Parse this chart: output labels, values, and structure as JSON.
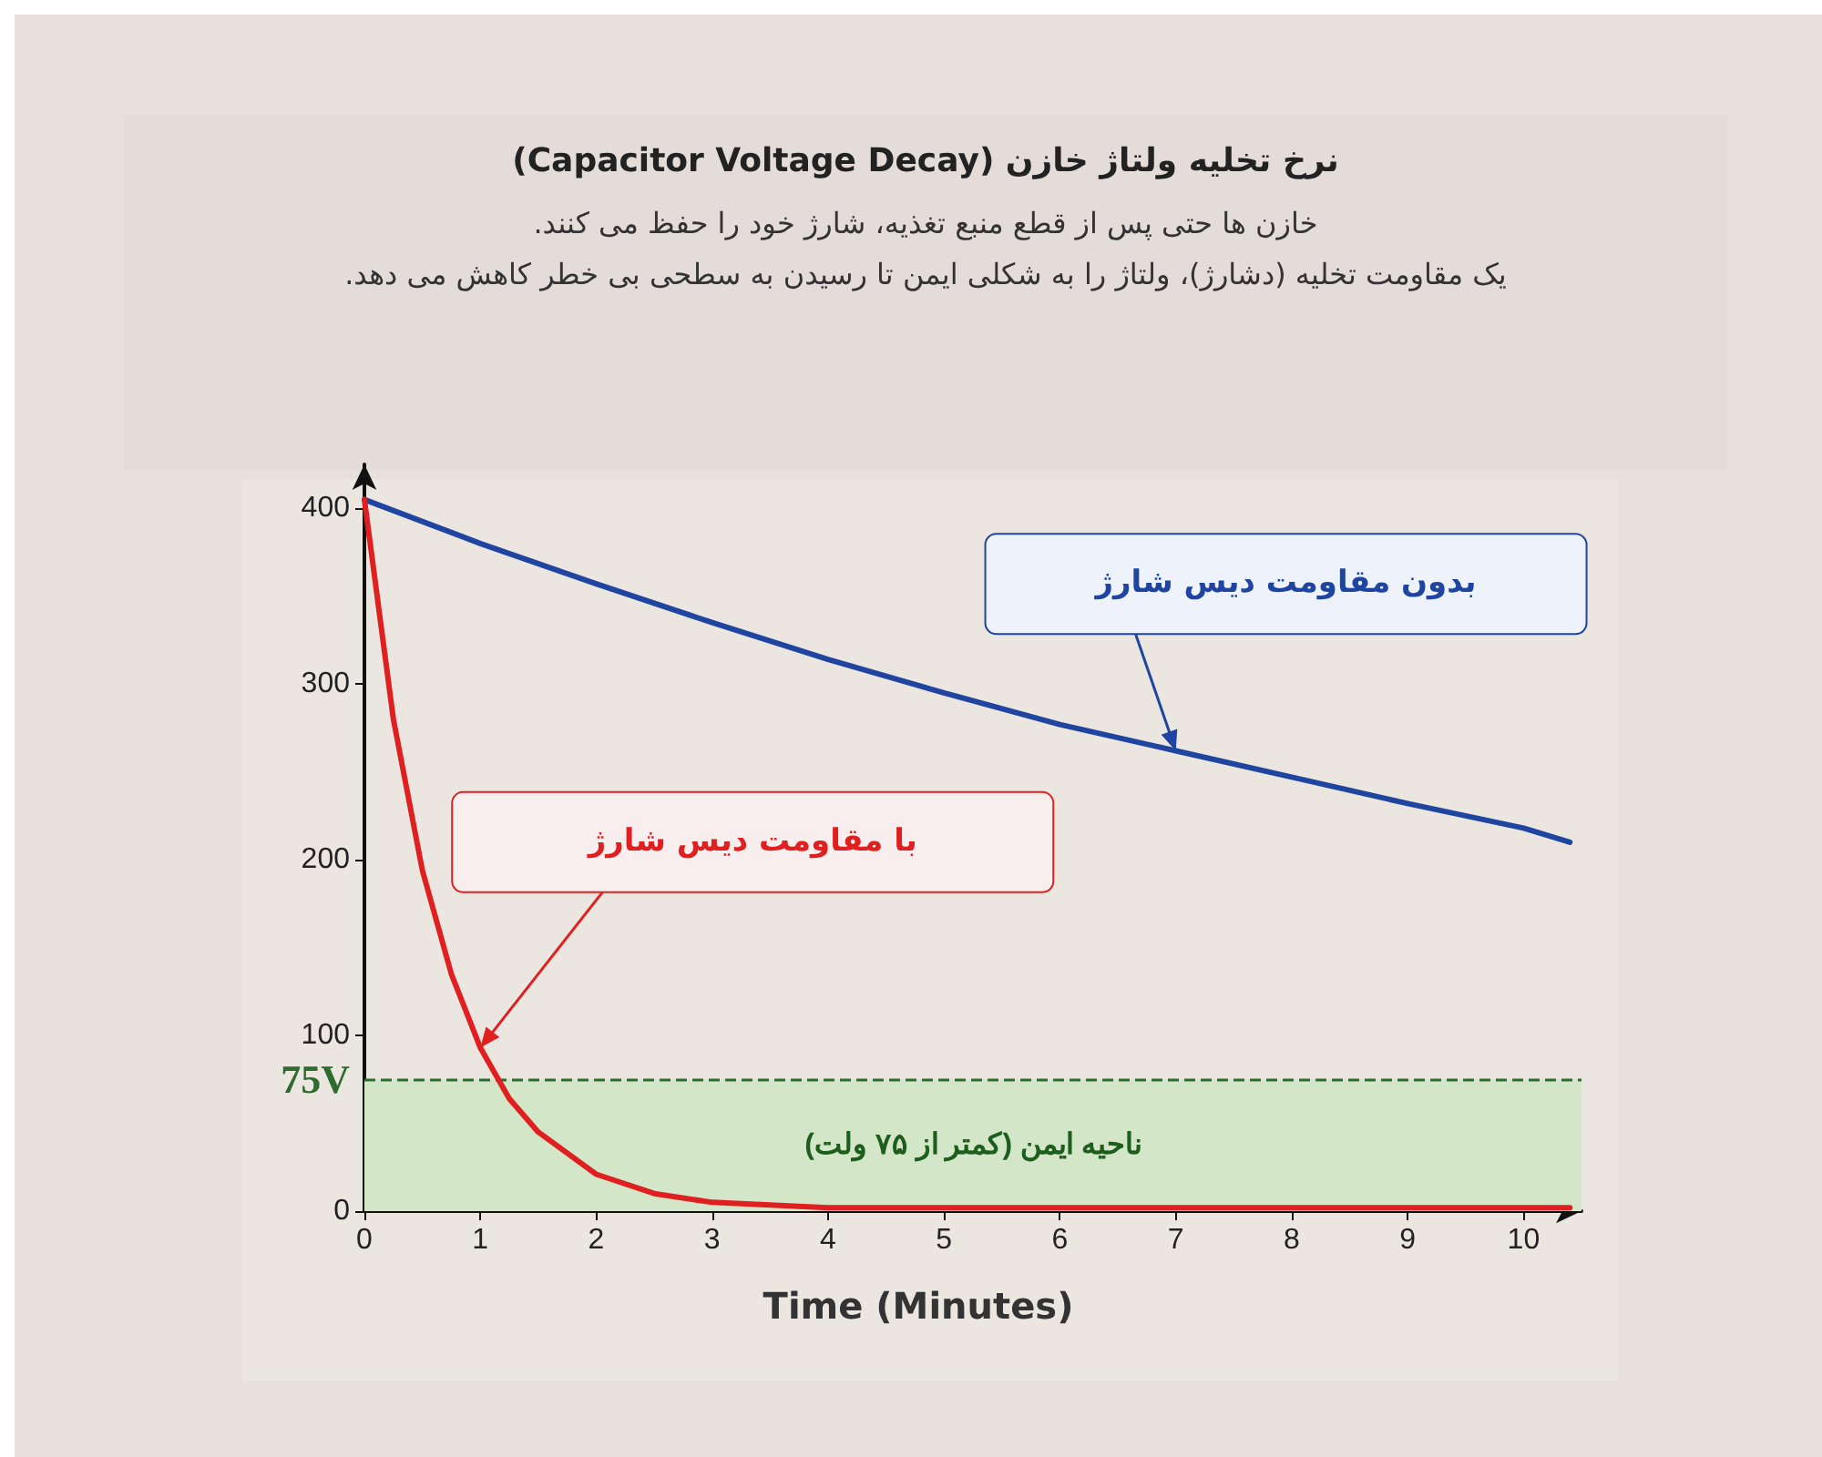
{
  "chart_data": {
    "type": "line",
    "title": "نرخ تخلیه ولتاژ خازن (Capacitor Voltage Decay)",
    "subtitle": "خازن ها حتی پس از قطع منبع تغذیه، شارژ خود را حفظ می کنند.\nیک مقاومت تخلیه (دشارژ)، ولتاژ را به شکلی ایمن تا رسیدن به سطحی بی خطر کاهش می دهد.",
    "xlabel": "Time (Minutes)",
    "xlim": [
      0,
      10.5
    ],
    "xticks": [
      0,
      1,
      2,
      3,
      4,
      5,
      6,
      7,
      8,
      9,
      10
    ],
    "ylim": [
      0,
      425
    ],
    "yticks": [
      0,
      100,
      200,
      300,
      400
    ],
    "grid": false,
    "legend": false,
    "marker": "none",
    "line_style": "solid",
    "series": [
      {
        "name": "بدون مقاومت دیس شارژ",
        "color": "#1f45a0",
        "x": [
          0,
          1,
          2,
          3,
          4,
          5,
          6,
          7,
          8,
          9,
          10,
          10.4
        ],
        "values": [
          405,
          380,
          357,
          335,
          314,
          295,
          277,
          262,
          247,
          232,
          218,
          210
        ]
      },
      {
        "name": "با مقاومت دیس شارژ",
        "color": "#e02020",
        "x": [
          0,
          0.25,
          0.5,
          0.75,
          1,
          1.25,
          1.5,
          2,
          2.5,
          3,
          4,
          5,
          10,
          10.4
        ],
        "values": [
          405,
          280,
          194,
          135,
          93,
          64,
          45,
          21,
          10,
          5,
          2,
          2,
          2,
          2
        ]
      }
    ],
    "ref_lines": [
      {
        "axis": "y",
        "value": 75,
        "label": "75V",
        "color": "#2e6b2e",
        "line_style": "dashed"
      }
    ],
    "bands": [
      {
        "axis": "y",
        "from": 0,
        "to": 75,
        "label": "ناحیه ایمن (کمتر از ۷۵ ولت)",
        "color": "#d4e6c8"
      }
    ]
  }
}
